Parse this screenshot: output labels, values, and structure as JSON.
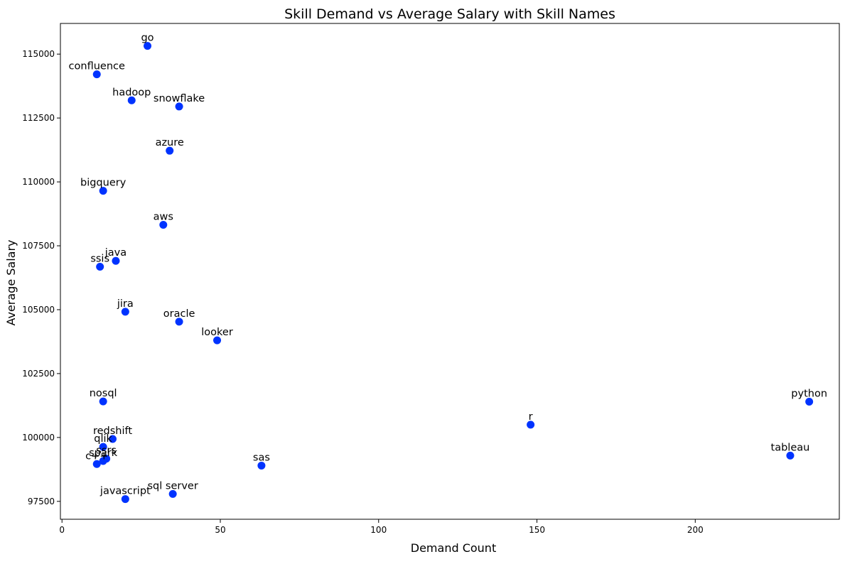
{
  "chart_data": {
    "type": "scatter",
    "title": "Skill Demand vs Average Salary with Skill Names",
    "xlabel": "Demand Count",
    "ylabel": "Average Salary",
    "xlim": [
      -0.5,
      245.5
    ],
    "ylim": [
      96800,
      116200
    ],
    "xticks": [
      0,
      50,
      100,
      150,
      200
    ],
    "yticks": [
      97500,
      100000,
      102500,
      105000,
      107500,
      110000,
      112500,
      115000
    ],
    "xtick_labels": [
      "0",
      "50",
      "100",
      "150",
      "200"
    ],
    "ytick_labels": [
      "97500",
      "100000",
      "102500",
      "105000",
      "107500",
      "110000",
      "112500",
      "115000"
    ],
    "grid": false,
    "point_color": "#0033ff",
    "points": [
      {
        "label": "go",
        "x": 27,
        "y": 115320
      },
      {
        "label": "confluence",
        "x": 11,
        "y": 114210
      },
      {
        "label": "hadoop",
        "x": 22,
        "y": 113190
      },
      {
        "label": "snowflake",
        "x": 37,
        "y": 112950
      },
      {
        "label": "azure",
        "x": 34,
        "y": 111220
      },
      {
        "label": "bigquery",
        "x": 13,
        "y": 109650
      },
      {
        "label": "aws",
        "x": 32,
        "y": 108320
      },
      {
        "label": "java",
        "x": 17,
        "y": 106910
      },
      {
        "label": "ssis",
        "x": 12,
        "y": 106680
      },
      {
        "label": "jira",
        "x": 20,
        "y": 104920
      },
      {
        "label": "oracle",
        "x": 37,
        "y": 104530
      },
      {
        "label": "looker",
        "x": 49,
        "y": 103800
      },
      {
        "label": "nosql",
        "x": 13,
        "y": 101410
      },
      {
        "label": "python",
        "x": 236,
        "y": 101400
      },
      {
        "label": "r",
        "x": 148,
        "y": 100500
      },
      {
        "label": "redshift",
        "x": 16,
        "y": 99940
      },
      {
        "label": "qlik",
        "x": 13,
        "y": 99630
      },
      {
        "label": "ssrs",
        "x": 14,
        "y": 99170
      },
      {
        "label": "spark",
        "x": 13,
        "y": 99080
      },
      {
        "label": "c++",
        "x": 11,
        "y": 98960
      },
      {
        "label": "tableau",
        "x": 230,
        "y": 99290
      },
      {
        "label": "sas",
        "x": 63,
        "y": 98900
      },
      {
        "label": "sql server",
        "x": 35,
        "y": 97790
      },
      {
        "label": "javascript",
        "x": 20,
        "y": 97590
      }
    ]
  }
}
